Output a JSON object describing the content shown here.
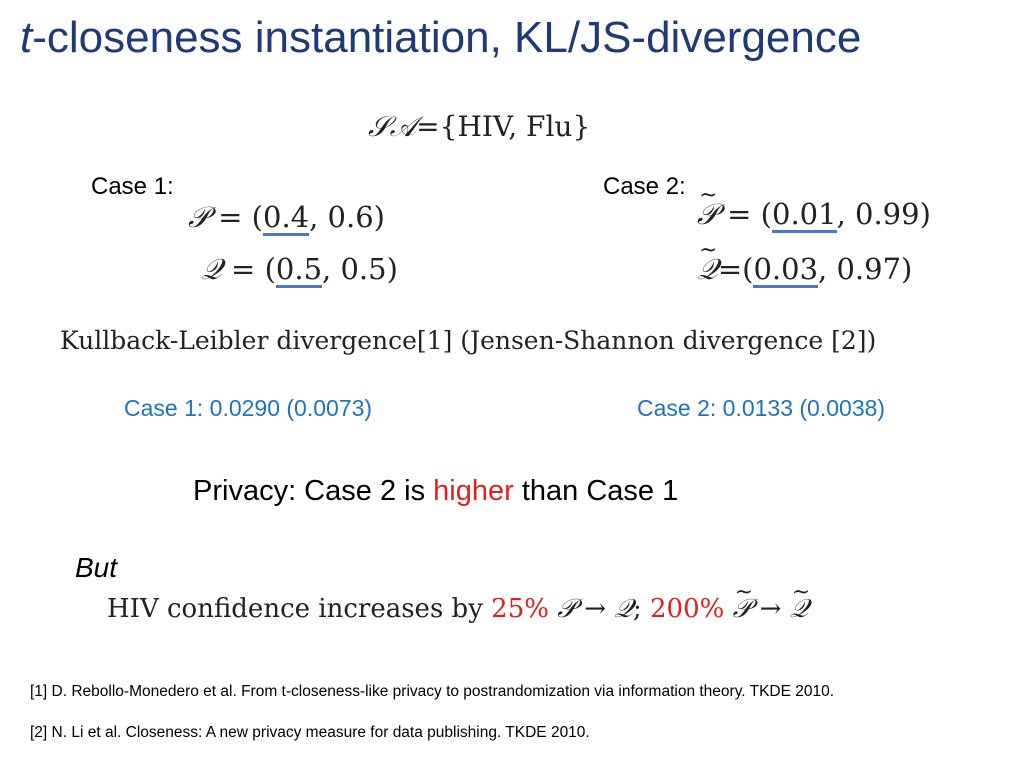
{
  "title": {
    "italic_part": "t",
    "rest": "-closeness instantiation, KL/JS-divergence"
  },
  "sa_line": {
    "symbol": "𝒮𝒜",
    "set": "={HIV, Flu}"
  },
  "case1": {
    "label": "Case 1:",
    "p_symbol": "𝒫",
    "p_eq": " = ",
    "p_underlined": "0.4",
    "p_rest": ", 0.6)",
    "q_symbol": "𝒬",
    "q_eq": " = ",
    "q_underlined": "0.5",
    "q_rest": ", 0.5)",
    "result": "Case 1: 0.0290 (0.0073)"
  },
  "case2": {
    "label": "Case 2:",
    "p_symbol": "𝒫",
    "p_eq": " = ",
    "p_underlined": "0.01",
    "p_rest": ", 0.99)",
    "q_symbol": "𝒬",
    "q_eq": "=",
    "q_underlined": "0.03",
    "q_rest": ", 0.97)",
    "result": "Case 2: 0.0133 (0.0038)"
  },
  "kl_line": "Kullback-Leibler divergence[1] (Jensen-Shannon divergence [2])",
  "privacy": {
    "prefix": "Privacy: Case 2 is ",
    "highlight": "higher",
    "suffix": " than Case 1"
  },
  "but": "But",
  "hiv_line": {
    "prefix": "HIV confidence increases by ",
    "pct1": "25%",
    "pct2": "200%",
    "p": "𝒫",
    "q": "𝒬",
    "arrow": " → ",
    "sep": "; "
  },
  "references": [
    "[1] D. Rebollo-Monedero et al. From t-closeness-like privacy to postrandomization via information theory. TKDE 2010.",
    "[2] N. Li et al. Closeness: A new privacy measure for data publishing. TKDE 2010."
  ],
  "colors": {
    "title": "#1f3a78",
    "result_blue": "#1e73be",
    "highlight_red": "#e02020",
    "underline_blue": "#4a78c2"
  }
}
